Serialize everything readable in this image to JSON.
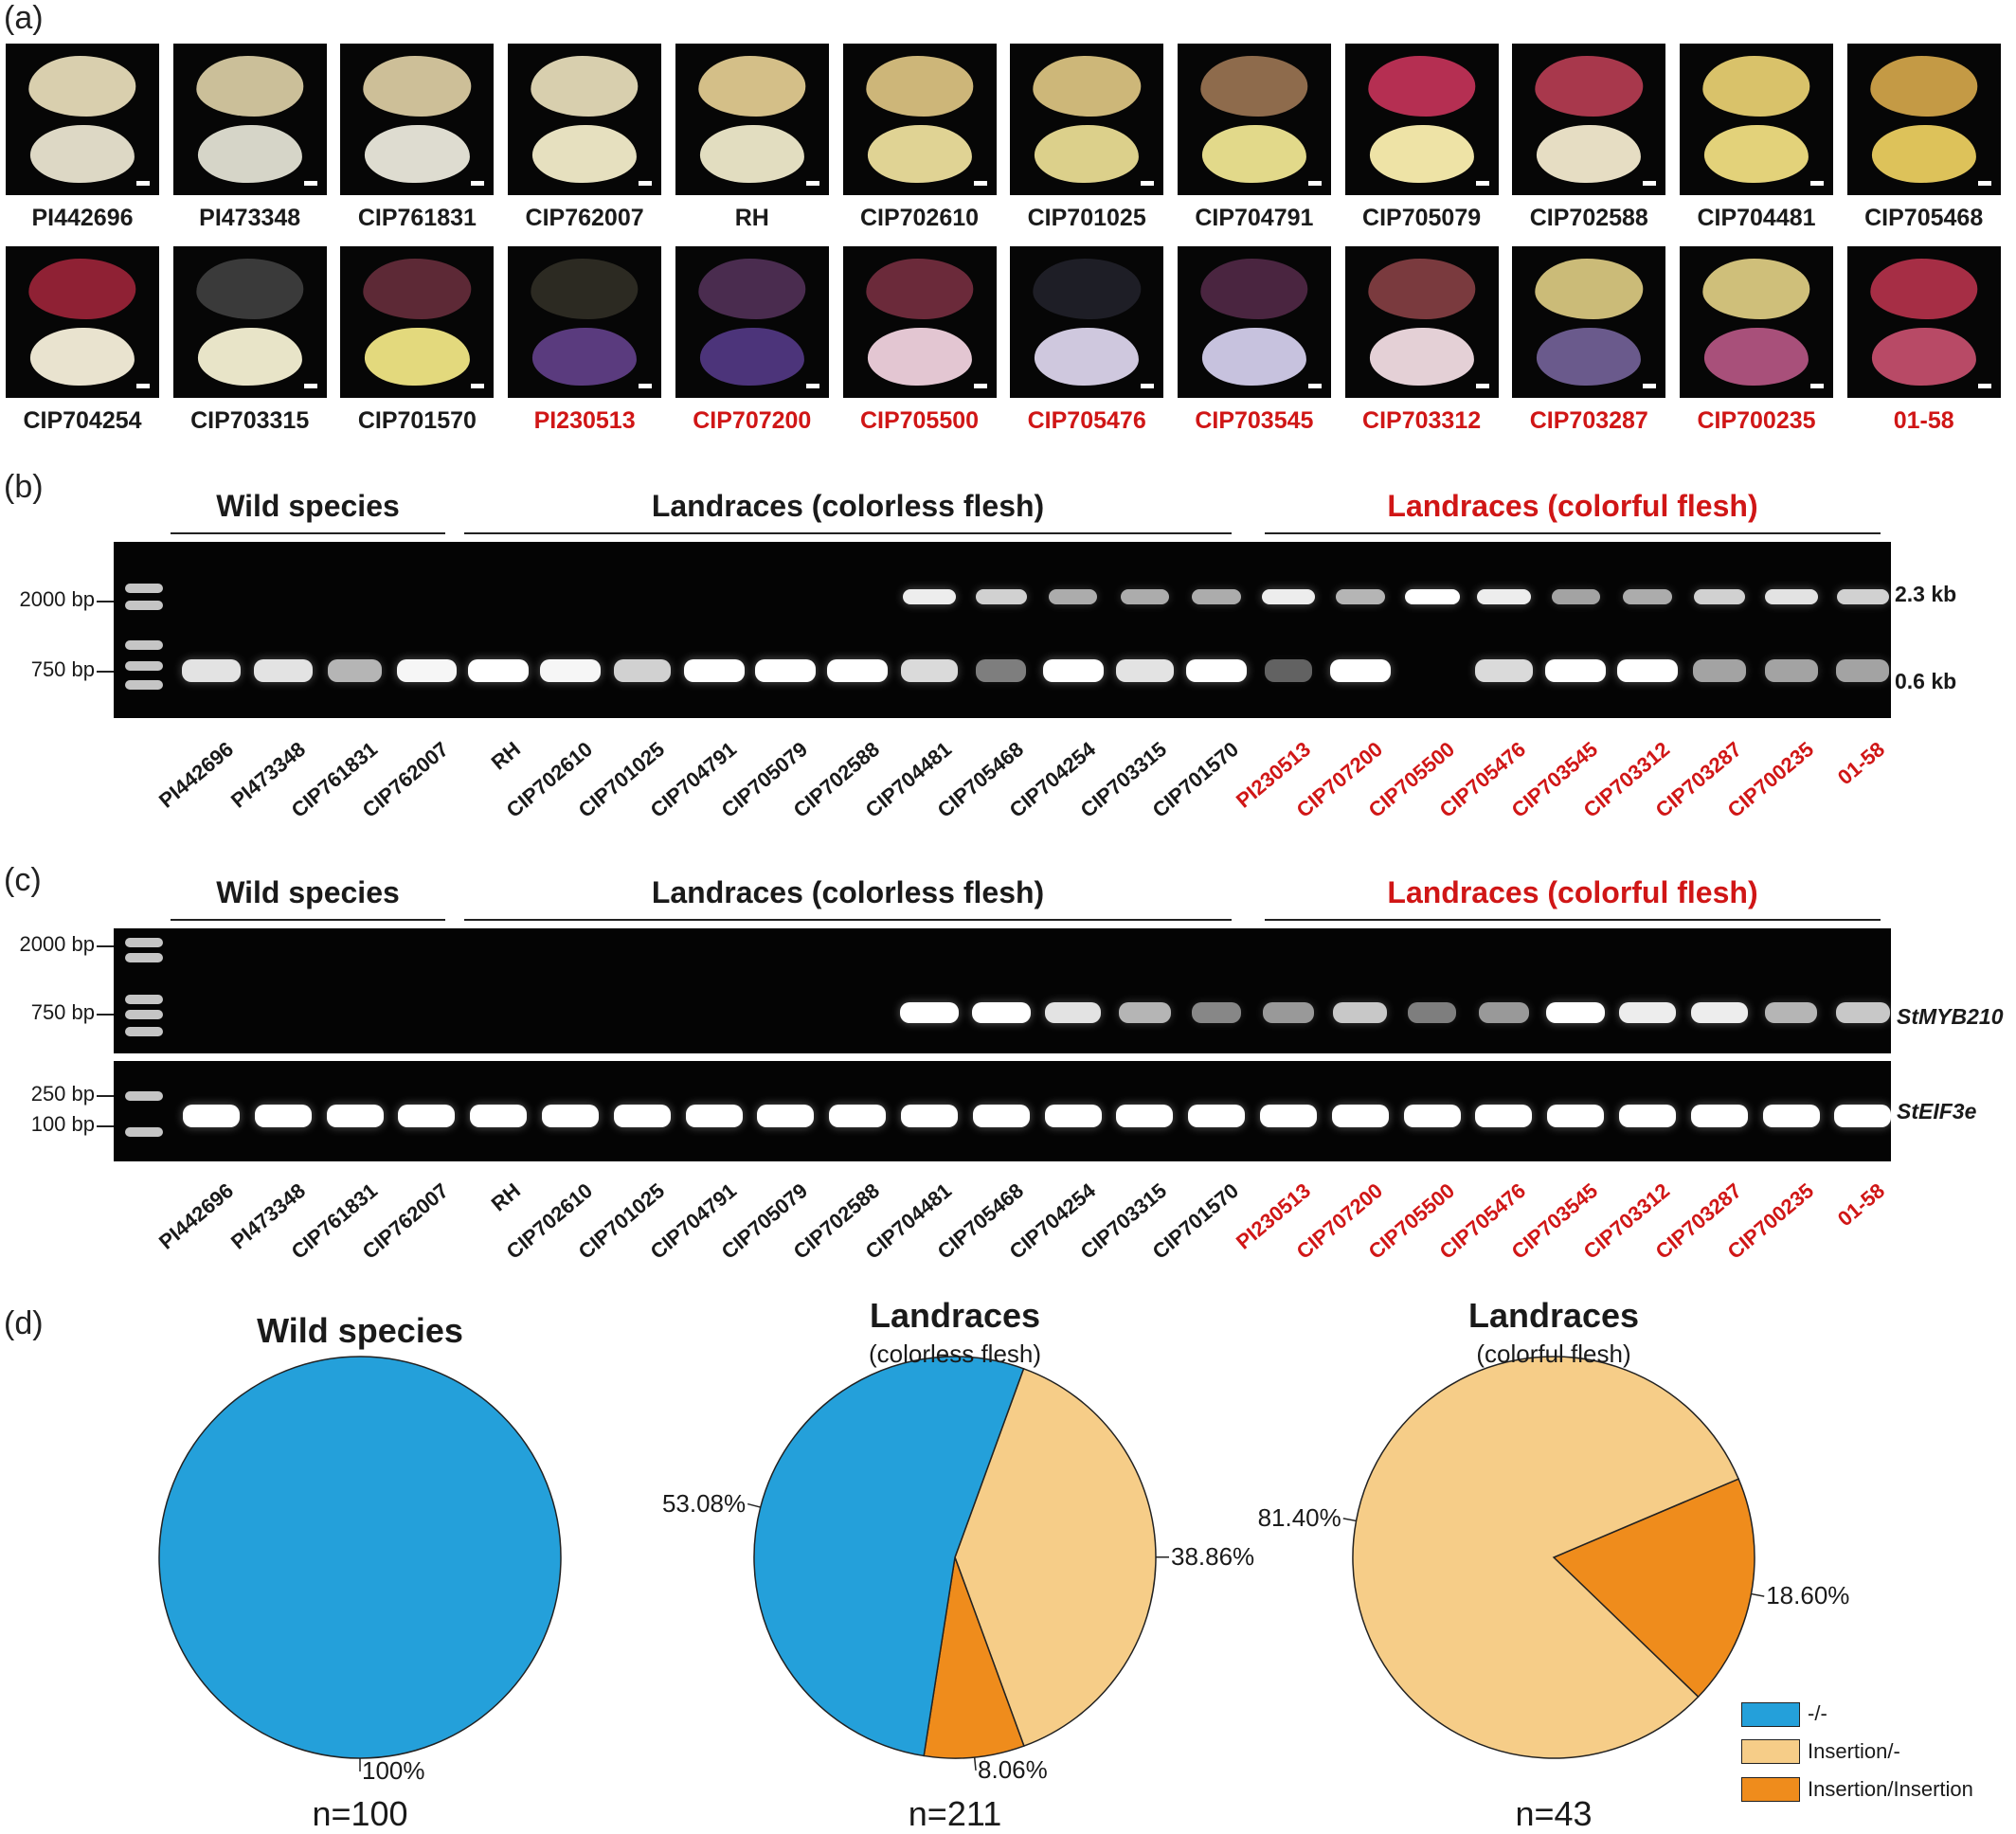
{
  "panel_labels": [
    "(a)",
    "(b)",
    "(c)",
    "(d)"
  ],
  "panel_a": {
    "rows": [
      [
        {
          "label": "PI442696",
          "red": false,
          "skin": "#d9cfae",
          "flesh": "#ddd8c5"
        },
        {
          "label": "PI473348",
          "red": false,
          "skin": "#cbbf99",
          "flesh": "#d6d5c8"
        },
        {
          "label": "CIP761831",
          "red": false,
          "skin": "#cdbf98",
          "flesh": "#dedcd0"
        },
        {
          "label": "CIP762007",
          "red": false,
          "skin": "#d8cfae",
          "flesh": "#e6e0bf"
        },
        {
          "label": "RH",
          "red": false,
          "skin": "#d4bf88",
          "flesh": "#e2ddc0"
        },
        {
          "label": "CIP702610",
          "red": false,
          "skin": "#cdb679",
          "flesh": "#e0d394"
        },
        {
          "label": "CIP701025",
          "red": false,
          "skin": "#cdb779",
          "flesh": "#dcd08b"
        },
        {
          "label": "CIP704791",
          "red": false,
          "skin": "#8e6b4c",
          "flesh": "#e2d98a"
        },
        {
          "label": "CIP705079",
          "red": false,
          "skin": "#b52f52",
          "flesh": "#eee3a6"
        },
        {
          "label": "CIP702588",
          "red": false,
          "skin": "#a8384c",
          "flesh": "#e6ddc3"
        },
        {
          "label": "CIP704481",
          "red": false,
          "skin": "#d9c26a",
          "flesh": "#e3d27a"
        },
        {
          "label": "CIP705468",
          "red": false,
          "skin": "#c49a45",
          "flesh": "#ddc25a"
        }
      ],
      [
        {
          "label": "CIP704254",
          "red": false,
          "skin": "#8f2134",
          "flesh": "#e9e3cf"
        },
        {
          "label": "CIP703315",
          "red": false,
          "skin": "#3a3a3a",
          "flesh": "#e8e4c8"
        },
        {
          "label": "CIP701570",
          "red": false,
          "skin": "#5d2936",
          "flesh": "#e3d97d"
        },
        {
          "label": "PI230513",
          "red": true,
          "skin": "#2c2a22",
          "flesh": "#5a3b7e"
        },
        {
          "label": "CIP707200",
          "red": true,
          "skin": "#4a2c4f",
          "flesh": "#4c347a"
        },
        {
          "label": "CIP705500",
          "red": true,
          "skin": "#6b2a3a",
          "flesh": "#e3c6d2"
        },
        {
          "label": "CIP705476",
          "red": true,
          "skin": "#1e1e26",
          "flesh": "#cfc8de"
        },
        {
          "label": "CIP703545",
          "red": true,
          "skin": "#4a2540",
          "flesh": "#c7c2de"
        },
        {
          "label": "CIP703312",
          "red": true,
          "skin": "#7a3a3e",
          "flesh": "#e4d0d6"
        },
        {
          "label": "CIP703287",
          "red": true,
          "skin": "#cbbb78",
          "flesh": "#6a5a8c"
        },
        {
          "label": "CIP700235",
          "red": true,
          "skin": "#cfbf7a",
          "flesh": "#a8507a"
        },
        {
          "label": "01-58",
          "red": true,
          "skin": "#a62e45",
          "flesh": "#b84a66"
        }
      ]
    ]
  },
  "gel_groups": {
    "wild": "Wild species",
    "colorless": "Landraces (colorless flesh)",
    "colorful": "Landraces (colorful flesh)"
  },
  "lanes": [
    {
      "label": "PI442696",
      "red": false
    },
    {
      "label": "PI473348",
      "red": false
    },
    {
      "label": "CIP761831",
      "red": false
    },
    {
      "label": "CIP762007",
      "red": false
    },
    {
      "label": "RH",
      "red": false
    },
    {
      "label": "CIP702610",
      "red": false
    },
    {
      "label": "CIP701025",
      "red": false
    },
    {
      "label": "CIP704791",
      "red": false
    },
    {
      "label": "CIP705079",
      "red": false
    },
    {
      "label": "CIP702588",
      "red": false
    },
    {
      "label": "CIP704481",
      "red": false
    },
    {
      "label": "CIP705468",
      "red": false
    },
    {
      "label": "CIP704254",
      "red": false
    },
    {
      "label": "CIP703315",
      "red": false
    },
    {
      "label": "CIP701570",
      "red": false
    },
    {
      "label": "PI230513",
      "red": true
    },
    {
      "label": "CIP707200",
      "red": true
    },
    {
      "label": "CIP705500",
      "red": true
    },
    {
      "label": "CIP705476",
      "red": true
    },
    {
      "label": "CIP703545",
      "red": true
    },
    {
      "label": "CIP703312",
      "red": true
    },
    {
      "label": "CIP703287",
      "red": true
    },
    {
      "label": "CIP700235",
      "red": true
    },
    {
      "label": "01-58",
      "red": true
    }
  ],
  "panel_b": {
    "markers": [
      "2000 bp",
      "750 bp"
    ],
    "band_labels": [
      "2.3 kb",
      "0.6 kb"
    ],
    "band_23kb": [
      0,
      0,
      0,
      0,
      0,
      0,
      0,
      0,
      0,
      0,
      0.9,
      0.75,
      0.55,
      0.55,
      0.55,
      0.9,
      0.6,
      1.0,
      0.9,
      0.5,
      0.55,
      0.75,
      0.85,
      0.75
    ],
    "band_06kb": [
      0.85,
      0.85,
      0.6,
      0.95,
      1.0,
      0.95,
      0.75,
      1.0,
      1.0,
      1.0,
      0.8,
      0.3,
      1.0,
      0.85,
      1.0,
      0.15,
      1.0,
      0,
      0.8,
      1.0,
      1.0,
      0.5,
      0.5,
      0.5
    ]
  },
  "panel_c": {
    "markers_top": [
      "2000 bp",
      "750 bp"
    ],
    "markers_bottom": [
      "250 bp",
      "100 bp"
    ],
    "gene_labels": [
      "StMYB210",
      "StEIF3e"
    ],
    "myb210": [
      0,
      0,
      0,
      0,
      0,
      0,
      0,
      0,
      0,
      0,
      1.0,
      1.0,
      0.85,
      0.6,
      0.35,
      0.45,
      0.7,
      0.3,
      0.45,
      1.0,
      0.9,
      0.9,
      0.6,
      0.7
    ],
    "eif3e": [
      1,
      1,
      1,
      1,
      1,
      1,
      1,
      1,
      1,
      1,
      1,
      1,
      1,
      1,
      1,
      1,
      1,
      1,
      1,
      1,
      1,
      1,
      1,
      1
    ]
  },
  "chart_data": {
    "type": "pie",
    "colors": {
      "minus_minus": "#24a0da",
      "insertion_minus": "#f6cd88",
      "insertion_insertion": "#ef8c1c"
    },
    "legend": [
      "-/-",
      "Insertion/-",
      "Insertion/Insertion"
    ],
    "pies": [
      {
        "title": "Wild species",
        "subtitle": "",
        "n_label": "n=100",
        "slices": [
          {
            "category": "-/-",
            "value": 100,
            "label": "100%"
          }
        ]
      },
      {
        "title": "Landraces",
        "subtitle": "(colorless flesh)",
        "n_label": "n=211",
        "slices": [
          {
            "category": "Insertion/-",
            "value": 38.86,
            "label": "38.86%"
          },
          {
            "category": "Insertion/Insertion",
            "value": 8.06,
            "label": "8.06%"
          },
          {
            "category": "-/-",
            "value": 53.08,
            "label": "53.08%"
          }
        ]
      },
      {
        "title": "Landraces",
        "subtitle": "(colorful flesh)",
        "n_label": "n=43",
        "slices": [
          {
            "category": "Insertion/Insertion",
            "value": 18.6,
            "label": "18.60%"
          },
          {
            "category": "Insertion/-",
            "value": 81.4,
            "label": "81.40%"
          }
        ]
      }
    ]
  }
}
